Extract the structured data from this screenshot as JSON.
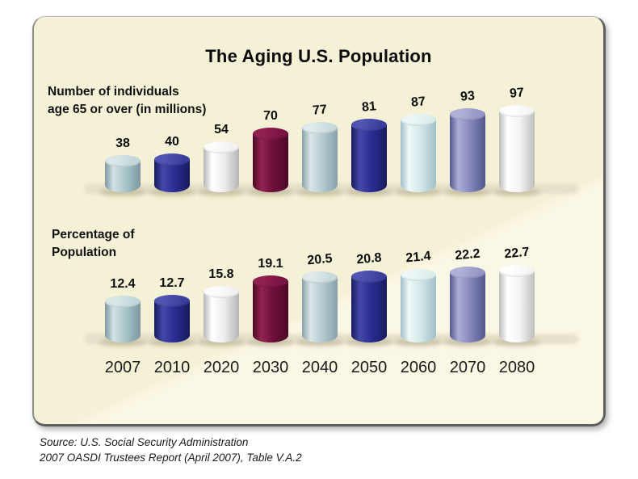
{
  "panel": {
    "title": "The Aging U.S. Population"
  },
  "chart_data": {
    "type": "bar",
    "variant": "3d-cylinder",
    "title": "The Aging U.S. Population",
    "categories": [
      "2007",
      "2010",
      "2020",
      "2030",
      "2040",
      "2050",
      "2060",
      "2070",
      "2080"
    ],
    "series": [
      {
        "name": "Number of individuals age 65 or over (in millions)",
        "label_lines": [
          "Number of individuals",
          "age 65 or over (in millions)"
        ],
        "values": [
          38,
          40,
          54,
          70,
          77,
          81,
          87,
          93,
          97
        ]
      },
      {
        "name": "Percentage of Population",
        "label_lines": [
          "Percentage of",
          "Population"
        ],
        "values": [
          12.4,
          12.7,
          15.8,
          19.1,
          20.5,
          20.8,
          21.4,
          22.2,
          22.7
        ]
      }
    ],
    "bar_colors": [
      {
        "year": "2007",
        "base": "#a6c4c9",
        "light": "#d2e2e4",
        "dark": "#7d97a0",
        "cap": "#c2d7d9",
        "capLight": "#d9e7e8"
      },
      {
        "year": "2010",
        "base": "#292c91",
        "light": "#4348a8",
        "dark": "#191b5e",
        "cap": "#3a3e9d",
        "capLight": "#5054b2"
      },
      {
        "year": "2020",
        "base": "#ededed",
        "light": "#ffffff",
        "dark": "#b5b5b5",
        "cap": "#f2f2f2",
        "capLight": "#fcfcfc"
      },
      {
        "year": "2030",
        "base": "#6e0e3a",
        "light": "#922350",
        "dark": "#4c0a26",
        "cap": "#7a1243",
        "capLight": "#902150"
      },
      {
        "year": "2040",
        "base": "#b4cad0",
        "light": "#d9e6e8",
        "dark": "#87a1aa",
        "cap": "#c8d9dc",
        "capLight": "#dfeaeb"
      },
      {
        "year": "2050",
        "base": "#292c91",
        "light": "#4348a8",
        "dark": "#191b5e",
        "cap": "#3a3e9d",
        "capLight": "#5054b2"
      },
      {
        "year": "2060",
        "base": "#d2e6e8",
        "light": "#eef8f8",
        "dark": "#a0bfc7",
        "cap": "#dcedee",
        "capLight": "#eef7f7"
      },
      {
        "year": "2070",
        "base": "#8487bb",
        "light": "#abaed6",
        "dark": "#54578d",
        "cap": "#9597c5",
        "capLight": "#afb1d6"
      },
      {
        "year": "2080",
        "base": "#f4f4f4",
        "light": "#ffffff",
        "dark": "#bdbdbd",
        "cap": "#f6f6f6",
        "capLight": "#ffffff"
      }
    ],
    "grid": false,
    "legend_position": "none",
    "value_labels": "above-bars",
    "category_labels": "below-bottom-row"
  },
  "source": {
    "line1": "Source: U.S. Social Security Administration",
    "line2": "2007 OASDI Trustees Report (April 2007), Table V.A.2"
  }
}
